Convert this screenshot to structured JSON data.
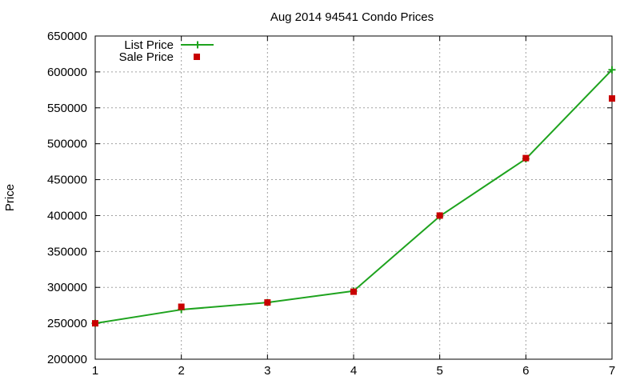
{
  "chart_data": {
    "type": "line",
    "title": "Aug 2014 94541 Condo Prices",
    "xlabel": "",
    "ylabel": "Price",
    "x": [
      1,
      2,
      3,
      4,
      5,
      6,
      7
    ],
    "xlim": [
      1,
      7
    ],
    "ylim": [
      200000,
      650000
    ],
    "xticks": [
      "1",
      "2",
      "3",
      "4",
      "5",
      "6",
      "7"
    ],
    "yticks": [
      "200000",
      "250000",
      "300000",
      "350000",
      "400000",
      "450000",
      "500000",
      "550000",
      "600000",
      "650000"
    ],
    "grid": true,
    "legend_position": "top-left",
    "series": [
      {
        "name": "List Price",
        "style": "line-plus",
        "color": "#1ea31e",
        "values": [
          250000,
          269000,
          279000,
          295000,
          399000,
          479000,
          603000
        ]
      },
      {
        "name": "Sale Price",
        "style": "square-markers",
        "color": "#c80000",
        "values": [
          250000,
          273000,
          279000,
          294000,
          400000,
          480000,
          563000
        ]
      }
    ]
  }
}
